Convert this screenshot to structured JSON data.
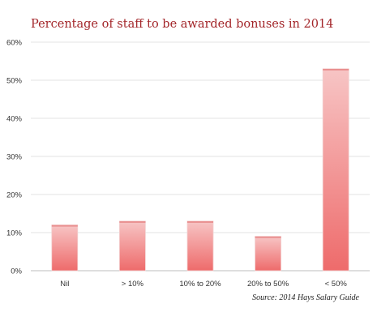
{
  "chart_data": {
    "type": "bar",
    "title": "Percentage of staff to be awarded bonuses in 2014",
    "source": "Source: 2014 Hays Salary Guide",
    "categories": [
      "Nil",
      "> 10%",
      "10% to 20%",
      "20% to 50%",
      "< 50%"
    ],
    "values": [
      12,
      13,
      13,
      9,
      53
    ],
    "unit": "%",
    "ylim": [
      0,
      60
    ],
    "y_ticks": [
      0,
      10,
      20,
      30,
      40,
      50,
      60
    ],
    "y_tick_labels": [
      "0%",
      "10%",
      "20%",
      "30%",
      "40%",
      "50%",
      "60%"
    ],
    "grid": true,
    "xlabel": "",
    "ylabel": "",
    "bar_color_top": "#f7c5c5",
    "bar_color_bottom": "#ee6b6b",
    "title_color": "#a3262a"
  }
}
